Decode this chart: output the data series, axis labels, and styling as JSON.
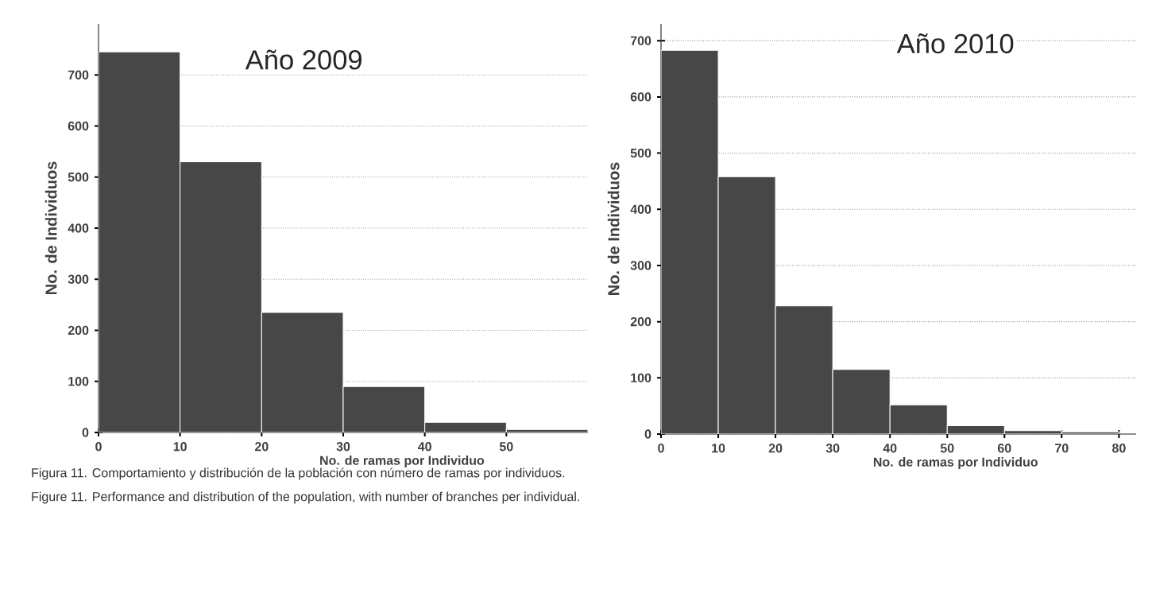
{
  "chart_data": [
    {
      "type": "histogram",
      "title": "Año 2009",
      "xlabel": "No. de ramas por Individuo",
      "ylabel": "No. de Individuos",
      "bins": [
        0,
        10,
        20,
        30,
        40,
        50,
        60
      ],
      "values": [
        745,
        530,
        235,
        90,
        20,
        6
      ],
      "color": "#474747",
      "xlim": [
        0,
        60
      ],
      "ylim": [
        0,
        800
      ],
      "xticks": [
        0,
        10,
        20,
        30,
        40,
        50
      ],
      "yticks": [
        0,
        100,
        200,
        300,
        400,
        500,
        600,
        700
      ],
      "grid": "y",
      "annotations": [
        "Figura 11. Comportamiento y distribución de la población con número de ramas por individuos.",
        "Figure 11. Performance and distribution of the population, with number of branches per individual."
      ]
    },
    {
      "type": "histogram",
      "title": "Año 2010",
      "xlabel": "No. de ramas por Individuo",
      "ylabel": "No. de Individuos",
      "bins": [
        0,
        10,
        20,
        30,
        40,
        50,
        60,
        70,
        80
      ],
      "values": [
        683,
        458,
        228,
        115,
        52,
        15,
        6,
        4
      ],
      "color": "#474747",
      "xlim": [
        0,
        83
      ],
      "ylim": [
        0,
        730
      ],
      "xticks": [
        0,
        10,
        20,
        30,
        40,
        50,
        60,
        70,
        80
      ],
      "yticks": [
        0,
        100,
        200,
        300,
        400,
        500,
        600,
        700
      ],
      "grid": "y"
    }
  ]
}
